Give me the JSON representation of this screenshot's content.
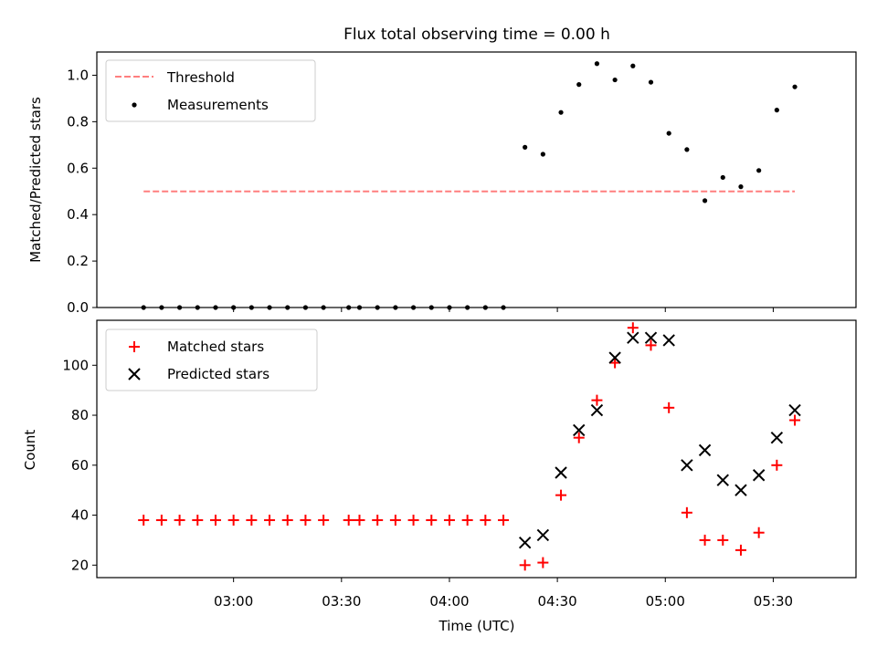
{
  "chart_data": [
    {
      "type": "scatter",
      "title": "Flux total observing time = 0.00 h",
      "xlabel": "",
      "ylabel": "Matched/Predicted stars",
      "ylim": [
        0,
        1.1
      ],
      "yticks": [
        "0.0",
        "0.2",
        "0.4",
        "0.6",
        "0.8",
        "1.0"
      ],
      "grid": false,
      "legend_position": "upper-left",
      "series": [
        {
          "name": "Threshold",
          "style": "dashed-line",
          "color": "#ff7f7f",
          "x": [
            "02:35",
            "05:36"
          ],
          "y": [
            0.5,
            0.5
          ]
        },
        {
          "name": "Measurements",
          "style": "dot",
          "color": "#000000",
          "x": [
            "02:35",
            "02:40",
            "02:45",
            "02:50",
            "02:55",
            "03:00",
            "03:05",
            "03:10",
            "03:15",
            "03:20",
            "03:25",
            "03:32",
            "03:35",
            "03:40",
            "03:45",
            "03:50",
            "03:55",
            "04:00",
            "04:05",
            "04:10",
            "04:15",
            "04:21",
            "04:26",
            "04:31",
            "04:36",
            "04:41",
            "04:46",
            "04:51",
            "04:56",
            "05:01",
            "05:06",
            "05:11",
            "05:16",
            "05:21",
            "05:26",
            "05:31",
            "05:36"
          ],
          "y": [
            0,
            0,
            0,
            0,
            0,
            0,
            0,
            0,
            0,
            0,
            0,
            0,
            0,
            0,
            0,
            0,
            0,
            0,
            0,
            0,
            0,
            0.69,
            0.66,
            0.84,
            0.96,
            1.05,
            0.98,
            1.04,
            0.97,
            0.75,
            0.68,
            0.46,
            0.56,
            0.52,
            0.59,
            0.85,
            0.95
          ]
        }
      ]
    },
    {
      "type": "scatter",
      "title": "",
      "xlabel": "Time (UTC)",
      "ylabel": "Count",
      "ylim": [
        15,
        118
      ],
      "yticks": [
        "20",
        "40",
        "60",
        "80",
        "100"
      ],
      "xtick_labels": [
        "03:00",
        "03:30",
        "04:00",
        "04:30",
        "05:00",
        "05:30"
      ],
      "grid": false,
      "legend_position": "upper-left",
      "series": [
        {
          "name": "Matched stars",
          "marker": "plus",
          "color": "#ff0000",
          "x": [
            "02:35",
            "02:40",
            "02:45",
            "02:50",
            "02:55",
            "03:00",
            "03:05",
            "03:10",
            "03:15",
            "03:20",
            "03:25",
            "03:32",
            "03:35",
            "03:40",
            "03:45",
            "03:50",
            "03:55",
            "04:00",
            "04:05",
            "04:10",
            "04:15",
            "04:21",
            "04:26",
            "04:31",
            "04:36",
            "04:41",
            "04:46",
            "04:51",
            "04:56",
            "05:01",
            "05:06",
            "05:11",
            "05:16",
            "05:21",
            "05:26",
            "05:31",
            "05:36"
          ],
          "y": [
            38,
            38,
            38,
            38,
            38,
            38,
            38,
            38,
            38,
            38,
            38,
            38,
            38,
            38,
            38,
            38,
            38,
            38,
            38,
            38,
            38,
            20,
            21,
            48,
            71,
            86,
            101,
            115,
            108,
            83,
            41,
            30,
            30,
            26,
            33,
            60,
            78
          ]
        },
        {
          "name": "Predicted stars",
          "marker": "x",
          "color": "#000000",
          "x": [
            "04:21",
            "04:26",
            "04:31",
            "04:36",
            "04:41",
            "04:46",
            "04:51",
            "04:56",
            "05:01",
            "05:06",
            "05:11",
            "05:16",
            "05:21",
            "05:26",
            "05:31",
            "05:36"
          ],
          "y": [
            29,
            32,
            57,
            74,
            82,
            103,
            111,
            111,
            110,
            60,
            66,
            54,
            50,
            56,
            71,
            82
          ]
        }
      ]
    }
  ]
}
